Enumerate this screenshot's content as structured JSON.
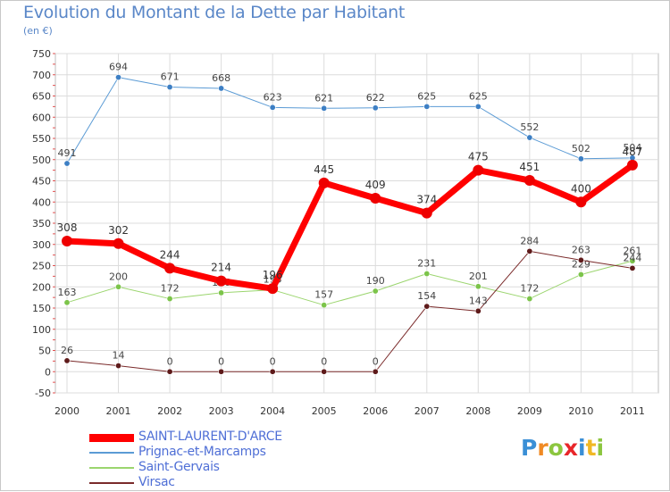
{
  "chart_data": {
    "type": "line",
    "title": "Evolution du Montant de la Dette par Habitant",
    "unit": "(en €)",
    "x": [
      "2000",
      "2001",
      "2002",
      "2003",
      "2004",
      "2005",
      "2006",
      "2007",
      "2008",
      "2009",
      "2010",
      "2011"
    ],
    "ylim": [
      -50,
      750
    ],
    "yticks": [
      -50,
      0,
      50,
      100,
      150,
      200,
      250,
      300,
      350,
      400,
      450,
      500,
      550,
      600,
      650,
      700,
      750
    ],
    "grid": true,
    "legend_position": "bottom-left",
    "series": [
      {
        "name": "Prignac-et-Marcamps",
        "color": "#5b9bd5",
        "marker": "#3d7fc4",
        "width": 1,
        "values": [
          491,
          694,
          671,
          668,
          623,
          621,
          622,
          625,
          625,
          552,
          502,
          504
        ]
      },
      {
        "name": "Saint-Gervais",
        "color": "#9bd56e",
        "marker": "#7cc44a",
        "width": 1,
        "values": [
          163,
          200,
          172,
          186,
          193,
          157,
          190,
          231,
          201,
          172,
          229,
          261
        ]
      },
      {
        "name": "Virsac",
        "color": "#7a2a2a",
        "marker": "#5e1a1a",
        "width": 1,
        "values": [
          26,
          14,
          0,
          0,
          0,
          0,
          0,
          154,
          143,
          284,
          263,
          244
        ]
      },
      {
        "name": "SAINT-LAURENT-D'ARCE",
        "color": "#ff0000",
        "marker": "#ee0000",
        "width": 7,
        "values": [
          308,
          302,
          244,
          214,
          196,
          445,
          409,
          374,
          475,
          451,
          400,
          487
        ]
      }
    ]
  },
  "legend": [
    {
      "name": "SAINT-LAURENT-D'ARCE",
      "color": "#ff0000"
    },
    {
      "name": "Prignac-et-Marcamps",
      "color": "#5b9bd5"
    },
    {
      "name": "Saint-Gervais",
      "color": "#9bd56e"
    },
    {
      "name": "Virsac",
      "color": "#7a2a2a"
    }
  ],
  "logo": {
    "letters": [
      "P",
      "r",
      "o",
      "x",
      "i",
      "t",
      "i"
    ],
    "colors": [
      "#3a8fd6",
      "#f08a24",
      "#8cc63f",
      "#e8262a",
      "#3a8fd6",
      "#f0b824",
      "#8cc63f"
    ]
  }
}
